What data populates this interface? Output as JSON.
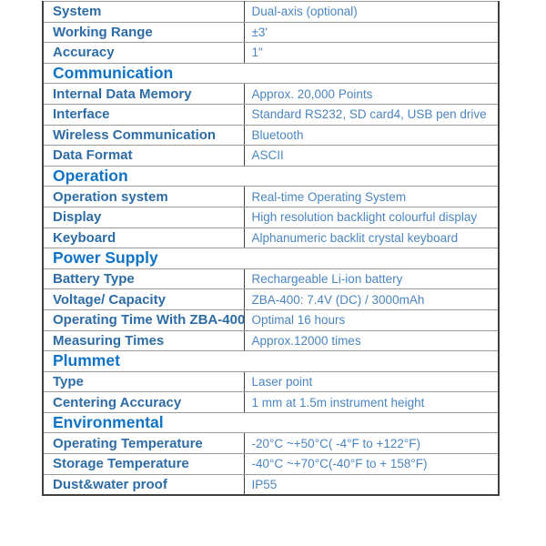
{
  "colors": {
    "page_background": "#ffffff",
    "section_header_text": "#1173c6",
    "label_text": "#2e6ca6",
    "value_text": "#4a85c0",
    "outer_border": "#3f3f3f",
    "grid_line": "#9a9a9a"
  },
  "spec_table": {
    "sections": [
      {
        "header": "",
        "rows": [
          {
            "label": "System",
            "value": "Dual-axis (optional)"
          },
          {
            "label": "Working Range",
            "value": "±3'"
          },
          {
            "label": "Accuracy",
            "value": "1\""
          }
        ]
      },
      {
        "header": "Communication",
        "rows": [
          {
            "label": "Internal Data Memory",
            "value": "Approx. 20,000 Points"
          },
          {
            "label": "Interface",
            "value": "Standard RS232, SD card4, USB pen drive"
          },
          {
            "label": "Wireless Communication",
            "value": "Bluetooth"
          },
          {
            "label": "Data Format",
            "value": "ASCII"
          }
        ]
      },
      {
        "header": "Operation",
        "rows": [
          {
            "label": "Operation system",
            "value": "Real-time Operating System"
          },
          {
            "label": "Display",
            "value": "High resolution backlight colourful display"
          },
          {
            "label": "Keyboard",
            "value": "Alphanumeric backlit crystal keyboard"
          }
        ]
      },
      {
        "header": "Power Supply",
        "rows": [
          {
            "label": "Battery Type",
            "value": "Rechargeable Li-ion battery"
          },
          {
            "label": "Voltage/ Capacity",
            "value": "ZBA-400: 7.4V (DC) / 3000mAh"
          },
          {
            "label": "Operating Time With ZBA-400",
            "value": "Optimal 16 hours"
          },
          {
            "label": "Measuring Times",
            "value": "Approx.12000 times"
          }
        ]
      },
      {
        "header": "Plummet",
        "rows": [
          {
            "label": "Type",
            "value": "Laser point"
          },
          {
            "label": "Centering Accuracy",
            "value": "1 mm at 1.5m instrument height"
          }
        ]
      },
      {
        "header": "Environmental",
        "rows": [
          {
            "label": "Operating Temperature",
            "value": "-20°C ~+50°C( -4°F to +122°F)"
          },
          {
            "label": "Storage Temperature",
            "value": "-40°C ~+70°C(-40°F to + 158°F)"
          },
          {
            "label": "Dust&water proof",
            "value": "IP55"
          }
        ]
      }
    ]
  }
}
